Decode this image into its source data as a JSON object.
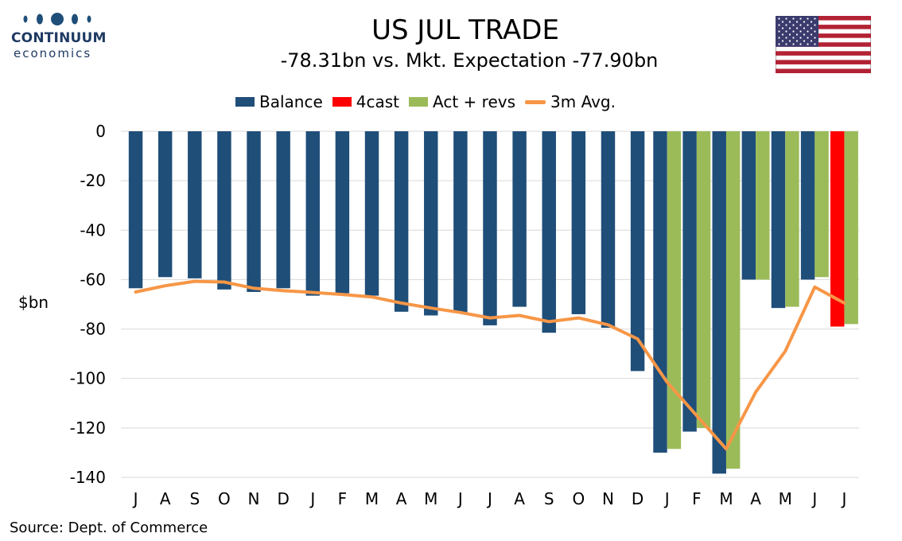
{
  "logo": {
    "name": "CONTINUUM",
    "sub": "economics"
  },
  "chart_data": {
    "type": "bar",
    "title": "US JUL TRADE",
    "subtitle": "-78.31bn vs. Mkt. Expectation -77.90bn",
    "ylabel": "$bn",
    "ylim": [
      -140,
      0
    ],
    "yticks": [
      0,
      -20,
      -40,
      -60,
      -80,
      -100,
      -120,
      -140
    ],
    "grid": true,
    "legend_position": "top",
    "categories": [
      "J",
      "A",
      "S",
      "O",
      "N",
      "D",
      "J",
      "F",
      "M",
      "A",
      "M",
      "J",
      "J",
      "A",
      "S",
      "O",
      "N",
      "D",
      "J",
      "F",
      "M",
      "A",
      "M",
      "J",
      "J"
    ],
    "series": [
      {
        "name": "Balance",
        "type": "bar",
        "color": "#1f4e79",
        "values": [
          -63.5,
          -59,
          -59.5,
          -64,
          -65,
          -63.5,
          -66.5,
          -65.5,
          -66.5,
          -73,
          -74.5,
          -73.5,
          -78.5,
          -71,
          -81.5,
          -74,
          -79.5,
          -97,
          -130,
          -121.5,
          -138.5,
          -60,
          -71.5,
          -60,
          null
        ]
      },
      {
        "name": "4cast",
        "type": "bar",
        "color": "#ff0000",
        "values": [
          null,
          null,
          null,
          null,
          null,
          null,
          null,
          null,
          null,
          null,
          null,
          null,
          null,
          null,
          null,
          null,
          null,
          null,
          null,
          null,
          null,
          null,
          null,
          null,
          -79
        ]
      },
      {
        "name": "Act + revs",
        "type": "bar",
        "color": "#9bbb59",
        "values": [
          null,
          null,
          null,
          null,
          null,
          null,
          null,
          null,
          null,
          null,
          null,
          null,
          null,
          null,
          null,
          null,
          null,
          null,
          -128.5,
          -120,
          -136.5,
          -60,
          -71,
          -59,
          -78
        ]
      },
      {
        "name": "3m Avg.",
        "type": "line",
        "color": "#f79646",
        "values": [
          -65,
          -62.5,
          -60.7,
          -61,
          -63.5,
          -64.5,
          -65.2,
          -66,
          -67,
          -69.5,
          -71.5,
          -73.3,
          -75.5,
          -74.5,
          -77,
          -75.5,
          -78.3,
          -84,
          -101.5,
          -115,
          -128.5,
          -105.5,
          -89,
          -63,
          -69.5
        ]
      }
    ]
  },
  "source": "Source: Dept. of Commerce",
  "colors": {
    "balance": "#1f4e79",
    "forecast": "#ff0000",
    "actual": "#9bbb59",
    "avg": "#f79646",
    "logo": "#1f3a63"
  },
  "flag": "us-flag"
}
